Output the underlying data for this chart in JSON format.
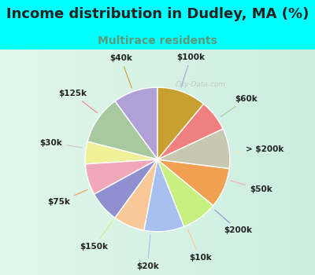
{
  "title": "Income distribution in Dudley, MA (%)",
  "subtitle": "Multirace residents",
  "watermark": "© City-Data.com",
  "bg_color": "#00FFFF",
  "chart_bg_top": "#e8f8f0",
  "chart_bg_bottom": "#d0eee0",
  "title_fontsize": 13,
  "title_color": "#222222",
  "subtitle_fontsize": 10,
  "subtitle_color": "#5a9a7a",
  "labels": [
    "$100k",
    "$60k",
    "> $200k",
    "$50k",
    "$200k",
    "$10k",
    "$20k",
    "$150k",
    "$75k",
    "$30k",
    "$125k",
    "$40k"
  ],
  "values": [
    10,
    11,
    5,
    7,
    7,
    7,
    9,
    8,
    9,
    9,
    7,
    11
  ],
  "colors": [
    "#b0a0d8",
    "#a8c8a0",
    "#f0f098",
    "#f0a8b8",
    "#9090d0",
    "#f8c898",
    "#a8c0f0",
    "#c8f080",
    "#f0a050",
    "#c8c8b0",
    "#f08080",
    "#c8a030"
  ],
  "label_font_size": 7.5,
  "label_color": "#222222",
  "line_color_map": {
    "$100k": "#9090a8",
    "$60k": "#90a890",
    "> $200k": "#d0d080",
    "$50k": "#e090a0",
    "$200k": "#8080b8",
    "$10k": "#e0b880",
    "$20k": "#9090c0",
    "$150k": "#a0d060",
    "$75k": "#e09040",
    "$30k": "#b0b098",
    "$125k": "#e07070",
    "$40k": "#a08020"
  }
}
